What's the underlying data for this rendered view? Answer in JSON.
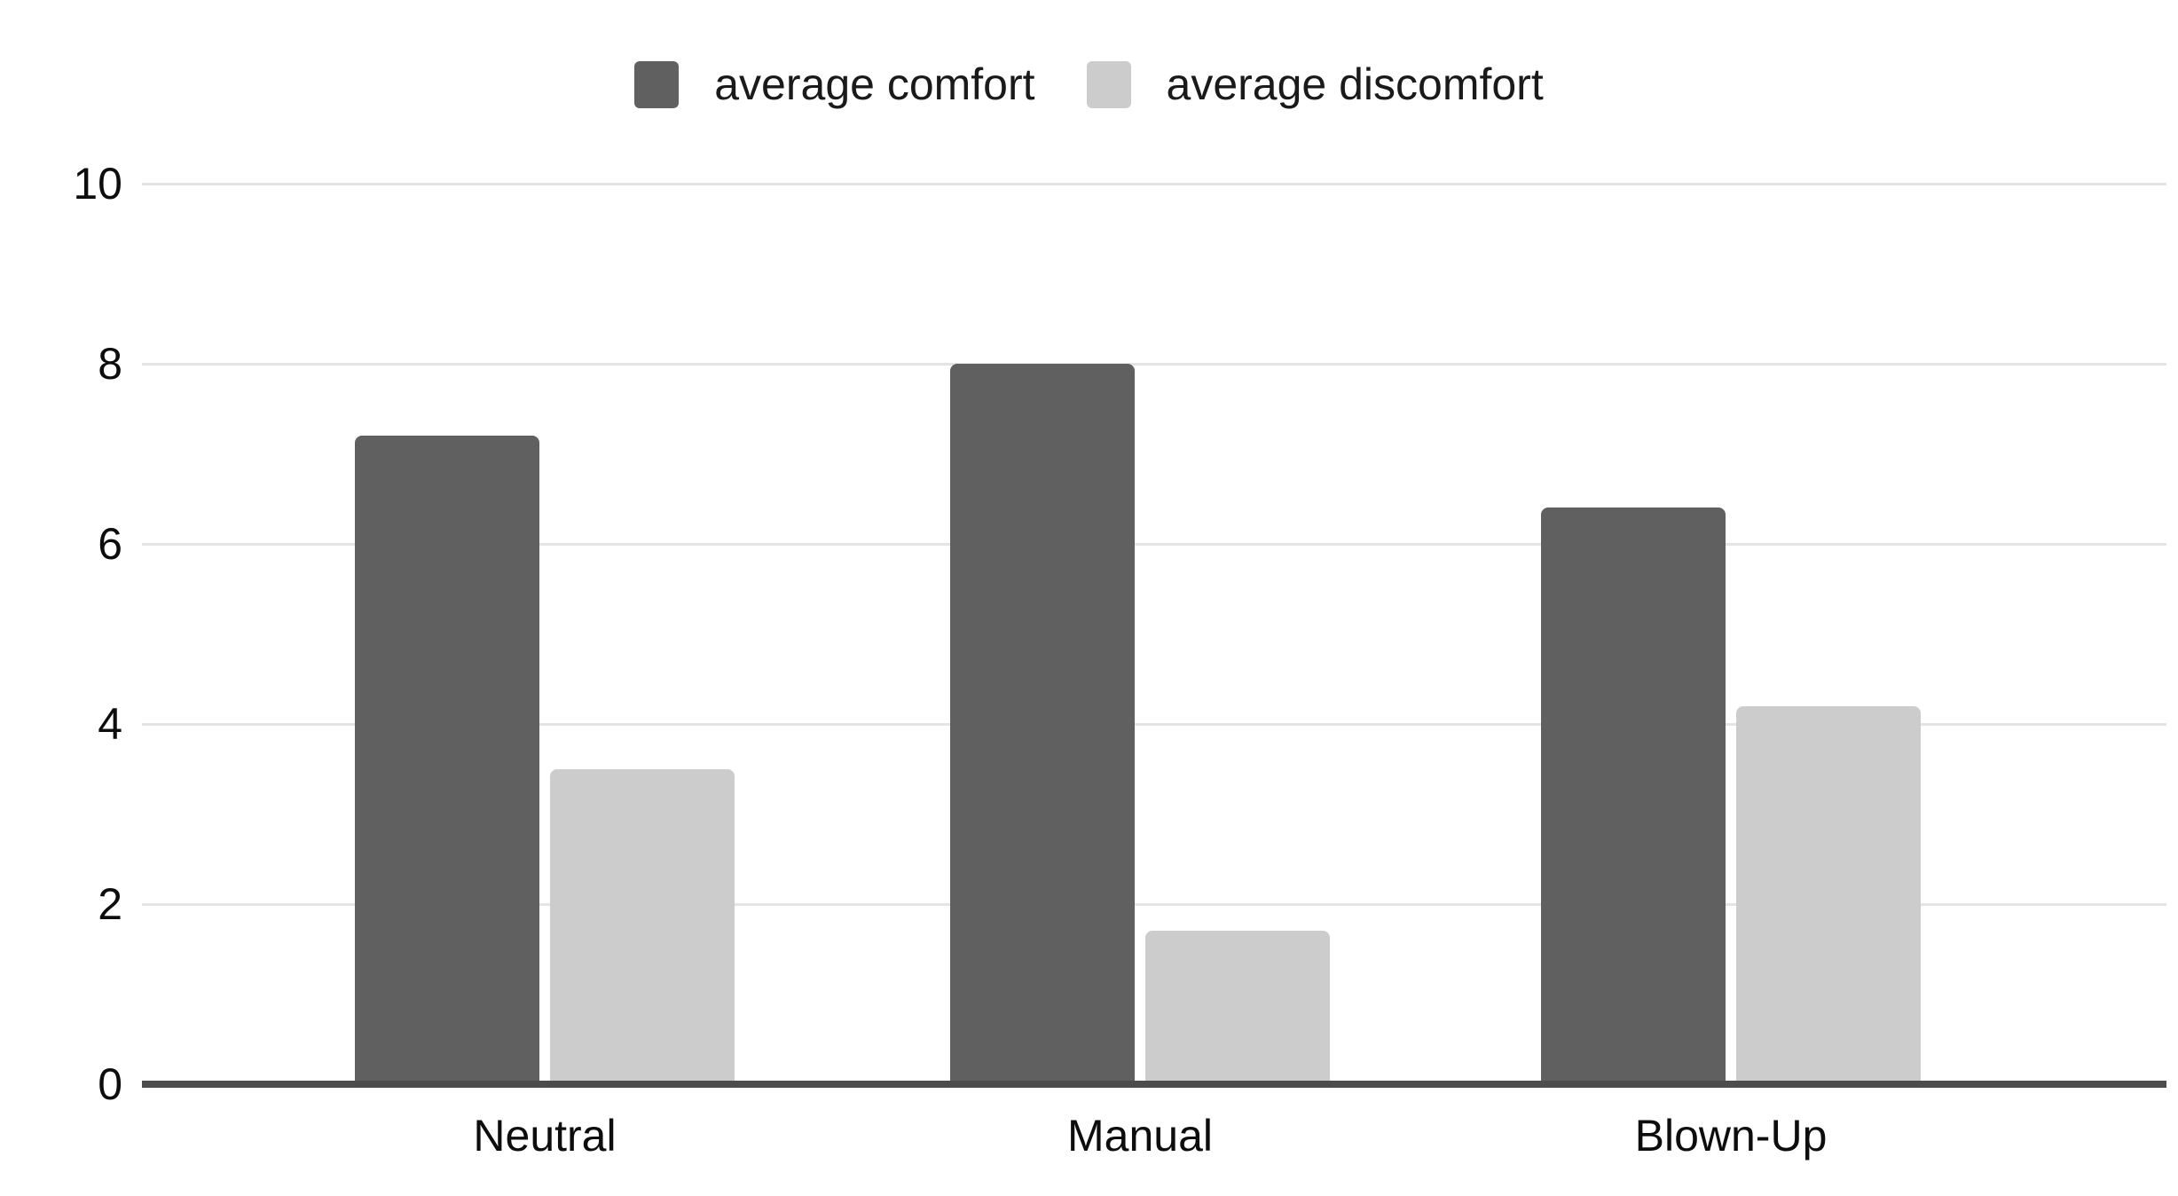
{
  "chart_data": {
    "type": "bar",
    "categories": [
      "Neutral",
      "Manual",
      "Blown-Up"
    ],
    "series": [
      {
        "name": "average comfort",
        "color": "#606060",
        "values": [
          7.2,
          8.0,
          6.4
        ]
      },
      {
        "name": "average discomfort",
        "color": "#cccccc",
        "values": [
          3.5,
          1.7,
          4.2
        ]
      }
    ],
    "ylim": [
      0,
      10
    ],
    "yticks": [
      0,
      2,
      4,
      6,
      8,
      10
    ],
    "grid": "horizontal",
    "legend_position": "top-center"
  },
  "colors": {
    "background": "#ffffff",
    "gridline": "#e4e4e4",
    "axis_line": "#4c4c4c",
    "tick_text": "#0d0d0d",
    "legend_text": "#1a1a1a"
  }
}
